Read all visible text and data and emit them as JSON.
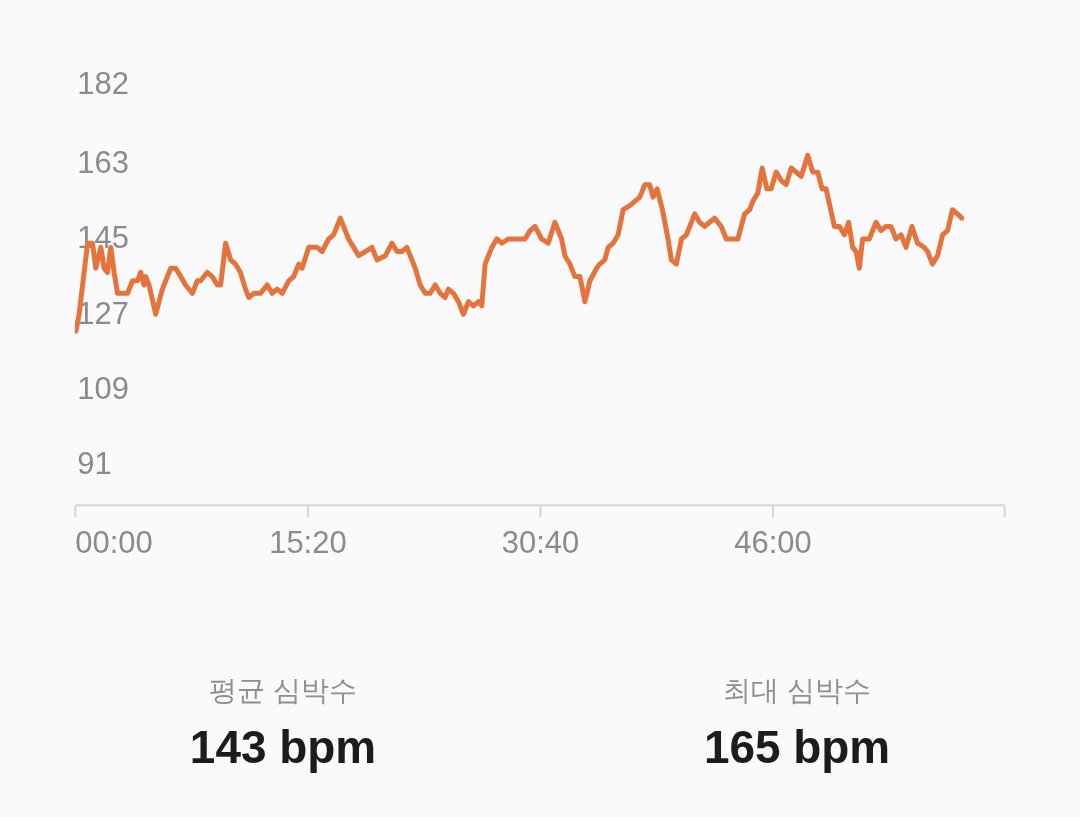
{
  "chart_data": {
    "type": "line",
    "x": [
      0.07,
      0.28,
      0.84,
      1.16,
      1.38,
      1.71,
      1.93,
      2.15,
      2.37,
      2.59,
      2.81,
      3.14,
      3.47,
      3.8,
      4.13,
      4.34,
      4.56,
      4.67,
      4.89,
      5.33,
      5.77,
      6.32,
      6.65,
      6.98,
      7.3,
      7.75,
      8.07,
      8.29,
      8.73,
      9.06,
      9.39,
      9.61,
      9.94,
      10.27,
      10.59,
      10.92,
      11.25,
      11.47,
      11.8,
      12.24,
      12.68,
      13.01,
      13.34,
      13.67,
      14.1,
      14.43,
      14.76,
      14.98,
      15.42,
      15.97,
      16.3,
      16.73,
      17.06,
      17.5,
      18.05,
      18.38,
      18.71,
      19.15,
      19.59,
      19.92,
      20.47,
      20.91,
      21.24,
      21.56,
      21.89,
      22.22,
      22.44,
      22.77,
      23.1,
      23.43,
      23.76,
      24.09,
      24.41,
      24.63,
      24.96,
      25.29,
      25.62,
      25.95,
      26.28,
      26.61,
      26.83,
      27.05,
      27.49,
      27.82,
      28.15,
      28.58,
      29.35,
      29.68,
      30.01,
      30.34,
      30.78,
      31.21,
      31.65,
      32.09,
      32.31,
      32.64,
      32.97,
      33.3,
      33.63,
      33.96,
      34.4,
      34.61,
      34.94,
      35.16,
      35.49,
      35.82,
      36.15,
      36.59,
      36.92,
      37.25,
      37.58,
      37.9,
      38.12,
      38.39,
      38.74,
      39.11,
      39.33,
      39.66,
      39.99,
      40.32,
      40.54,
      40.87,
      41.19,
      41.52,
      41.85,
      42.18,
      42.62,
      42.95,
      43.71,
      44.16,
      44.49,
      44.7,
      45.03,
      45.32,
      45.62,
      45.91,
      46.24,
      46.57,
      46.9,
      47.23,
      47.56,
      47.89,
      48.32,
      48.65,
      48.98,
      49.27,
      49.53,
      50.08,
      50.41,
      50.74,
      51.02,
      51.28,
      51.51,
      51.72,
      51.94,
      52.38,
      52.82,
      53.15,
      53.48,
      53.81,
      54.14,
      54.47,
      54.8,
      55.19,
      55.56,
      56.0,
      56.22,
      56.55,
      56.88,
      57.21,
      57.54,
      57.86,
      58.19,
      58.48
    ],
    "series": [
      {
        "color": "#e5733a",
        "values": [
          123,
          127,
          144,
          144,
          138,
          143,
          138,
          137,
          143,
          137,
          132,
          132,
          132,
          135,
          135,
          137,
          134,
          136,
          134,
          127,
          133,
          138,
          138,
          136,
          134,
          132,
          135,
          135,
          137,
          136,
          134,
          134,
          144,
          140,
          139,
          137,
          133,
          131,
          132,
          132,
          134,
          132,
          133,
          132,
          135,
          136,
          139,
          138,
          143,
          143,
          142,
          145,
          146,
          150,
          145,
          143,
          141,
          142,
          143,
          140,
          141,
          144,
          142,
          142,
          143,
          140,
          138,
          134,
          132,
          132,
          134,
          132,
          131,
          133,
          132,
          130,
          127,
          130,
          129,
          130,
          129,
          139,
          143,
          145,
          144,
          145,
          145,
          145,
          147,
          148,
          145,
          144,
          149,
          145,
          141,
          139,
          136,
          136,
          130,
          135,
          138,
          139,
          140,
          143,
          144,
          146,
          152,
          153,
          154,
          155,
          158,
          158,
          155,
          157,
          152,
          145,
          140,
          139,
          145,
          146,
          148,
          151,
          149,
          148,
          149,
          150,
          148,
          145,
          145,
          151,
          152,
          154,
          156,
          162,
          157,
          157,
          161,
          159,
          158,
          162,
          161,
          160,
          165,
          161,
          161,
          157,
          157,
          148,
          148,
          146,
          149,
          143,
          142,
          138,
          145,
          145,
          149,
          147,
          148,
          148,
          145,
          146,
          143,
          148,
          144,
          143,
          142,
          139,
          141,
          146,
          147,
          152,
          151,
          150
        ]
      }
    ],
    "xlim": [
      0,
      61.27
    ],
    "xticks": [
      {
        "value": 0,
        "label": "00:00"
      },
      {
        "value": 15.333,
        "label": "15:20"
      },
      {
        "value": 30.667,
        "label": "30:40"
      },
      {
        "value": 46,
        "label": "46:00"
      },
      {
        "value": 61.27,
        "label": null
      }
    ],
    "ylim": [
      81.4,
      202
    ],
    "yticks": [
      91,
      109,
      127,
      145,
      163,
      182
    ],
    "grid": false,
    "line_style": "solid",
    "annotations": [
      "평균 심박수",
      "143 bpm",
      "최대 심박수",
      "165 bpm"
    ]
  }
}
